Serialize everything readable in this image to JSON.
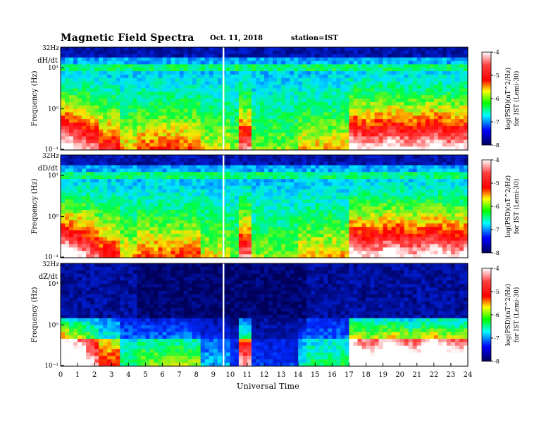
{
  "header": {
    "title": "Magnetic  Field  Spectra",
    "date": "Oct. 11, 2018",
    "station": "station=IST"
  },
  "chart_data": {
    "type": "heatmap",
    "title": "Magnetic  Field  Spectra",
    "xlabel": "Universal Time",
    "x_ticks": [
      "0",
      "1",
      "2",
      "3",
      "4",
      "5",
      "6",
      "7",
      "8",
      "9",
      "10",
      "11",
      "12",
      "13",
      "14",
      "15",
      "16",
      "17",
      "18",
      "19",
      "20",
      "21",
      "22",
      "23",
      "24"
    ],
    "xlim": [
      0,
      24
    ],
    "panels": [
      {
        "component": "dH/dt",
        "ylabel": "Frequency (Hz)",
        "y_top_label": "32Hz",
        "y_ticks": [
          "10¹",
          "10⁰",
          "10⁻¹"
        ],
        "colorbar_label": "log(PSD)(nT^2/Hz)",
        "colorbar_sublabel": "for IST (Lemi-30)",
        "colorbar_ticks": [
          "-4",
          "-5",
          "-6",
          "-7",
          "-8"
        ]
      },
      {
        "component": "dD/dt",
        "ylabel": "Frequency (Hz)",
        "y_top_label": "32Hz",
        "y_ticks": [
          "10¹",
          "10⁰",
          "10⁻¹"
        ],
        "colorbar_label": "log(PSD)(nT^2/Hz)",
        "colorbar_sublabel": "for IST (Lemi-30)",
        "colorbar_ticks": [
          "-4",
          "-5",
          "-6",
          "-7",
          "-8"
        ]
      },
      {
        "component": "dZ/dt",
        "ylabel": "Frequency (Hz)",
        "y_top_label": "32Hz",
        "y_ticks": [
          "10¹",
          "10⁰",
          "10⁻¹"
        ],
        "colorbar_label": "log(PSD)(nT^2/Hz)",
        "colorbar_sublabel": "for IST (Lemi-30)",
        "colorbar_ticks": [
          "-4",
          "-5",
          "-6",
          "-7",
          "-8"
        ]
      }
    ],
    "colormap": [
      "#ffffff",
      "#ff0000",
      "#ffff00",
      "#00ff00",
      "#00ffff",
      "#0000ff",
      "#00005a"
    ],
    "data_gap_hours": [
      9.6
    ]
  }
}
